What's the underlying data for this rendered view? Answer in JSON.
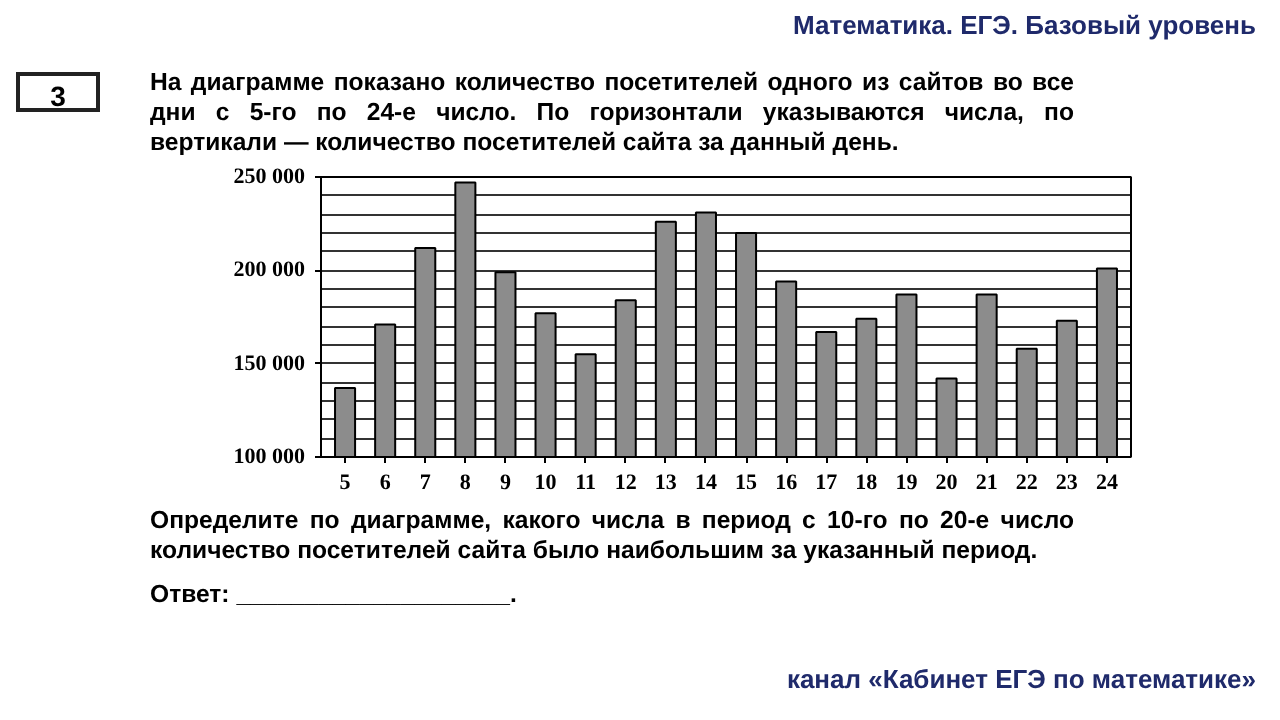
{
  "chart_data": {
    "type": "bar",
    "title": "На диаграмме показано количество посетителей одного из сайтов во все дни с 5-го по 24-е число. По горизонтали указываются числа, по вертикали — количество посетителей сайта за данный день.",
    "annotations": [
      "Математика. ЕГЭ. Базовый уровень",
      "3",
      "Определите по диаграмме, какого числа в период с 10-го по 20-е число количество посетителей сайта было наибольшим за указанный период.",
      "Ответ: ____________________.",
      "канал «Кабинет ЕГЭ по математике»"
    ],
    "categories": [
      "5",
      "6",
      "7",
      "8",
      "9",
      "10",
      "11",
      "12",
      "13",
      "14",
      "15",
      "16",
      "17",
      "18",
      "19",
      "20",
      "21",
      "22",
      "23",
      "24"
    ],
    "values": [
      137000,
      171000,
      212000,
      247000,
      199000,
      177000,
      155000,
      184000,
      226000,
      231000,
      220000,
      194000,
      167000,
      174000,
      187000,
      142000,
      187000,
      158000,
      173000,
      201000
    ],
    "color": "#8c8c8c",
    "ylim": [
      100000,
      250000
    ],
    "yticks": [
      {
        "value": 100000,
        "label": "100 000"
      },
      {
        "value": 110000,
        "label": null
      },
      {
        "value": 120000,
        "label": null
      },
      {
        "value": 130000,
        "label": null
      },
      {
        "value": 140000,
        "label": null
      },
      {
        "value": 150000,
        "label": "150 000"
      },
      {
        "value": 160000,
        "label": null
      },
      {
        "value": 170000,
        "label": null
      },
      {
        "value": 180000,
        "label": null
      },
      {
        "value": 190000,
        "label": null
      },
      {
        "value": 200000,
        "label": "200 000"
      },
      {
        "value": 210000,
        "label": null
      },
      {
        "value": 220000,
        "label": null
      },
      {
        "value": 230000,
        "label": null
      },
      {
        "value": 240000,
        "label": null
      },
      {
        "value": 250000,
        "label": "250 000"
      }
    ],
    "grid": "y"
  }
}
